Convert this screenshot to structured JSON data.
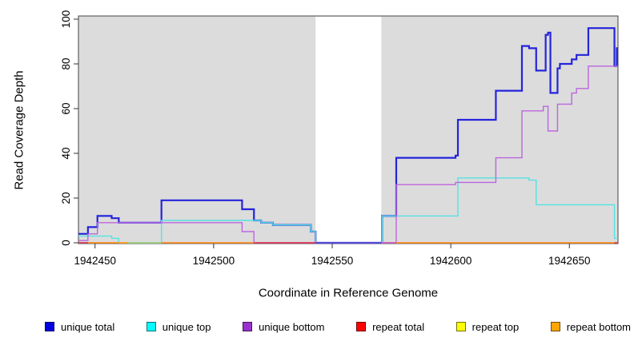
{
  "chart_data": {
    "type": "line",
    "subtype": "step-coverage-plot",
    "title": "",
    "xlabel": "Coordinate in Reference Genome",
    "ylabel": "Read Coverage Depth",
    "x_ticks": [
      1942450,
      1942500,
      1942550,
      1942600,
      1942650
    ],
    "y_ticks": [
      0,
      20,
      40,
      60,
      80,
      100
    ],
    "xlim": [
      1942443,
      1942670.5
    ],
    "ylim": [
      0,
      100
    ],
    "grid": false,
    "legend_position": "bottom",
    "plot_bg_color": "#DCDCDC",
    "frame_color": "#444444",
    "gap_region": {
      "x1": 1942543,
      "x2": 1942570.7,
      "color": "#FFFFFF"
    },
    "series": [
      {
        "label": "unique total",
        "color": "#2424DC",
        "legend_color": "#0000E0",
        "line_width": 2.2,
        "segments": [
          {
            "points": [
              [
                1942443,
                4
              ],
              [
                1942447,
                7
              ],
              [
                1942451,
                12
              ],
              [
                1942457,
                11
              ],
              [
                1942460,
                9
              ],
              [
                1942478,
                19
              ],
              [
                1942512,
                15
              ],
              [
                1942517,
                10
              ],
              [
                1942520,
                9
              ],
              [
                1942525,
                8
              ],
              [
                1942541,
                5
              ],
              [
                1942543,
                0
              ],
              [
                1942571,
                12
              ],
              [
                1942577,
                38
              ],
              [
                1942602,
                39
              ],
              [
                1942603,
                55
              ],
              [
                1942619,
                68
              ],
              [
                1942630,
                88
              ],
              [
                1942633,
                87
              ],
              [
                1942636,
                77
              ],
              [
                1942640,
                93
              ],
              [
                1942641,
                94
              ],
              [
                1942642,
                67
              ],
              [
                1942645,
                78
              ],
              [
                1942646,
                80
              ],
              [
                1942651,
                82
              ],
              [
                1942653,
                84
              ],
              [
                1942658,
                96
              ],
              [
                1942669,
                79
              ],
              [
                1942670,
                87
              ]
            ],
            "end": 1942670.5
          }
        ]
      },
      {
        "label": "unique top",
        "color": "#55E2E2",
        "legend_color": "#00FFFF",
        "line_width": 1.4,
        "segments": [
          {
            "points": [
              [
                1942443,
                3
              ],
              [
                1942457,
                2
              ],
              [
                1942460,
                0
              ],
              [
                1942478,
                10
              ],
              [
                1942517,
                10
              ],
              [
                1942520,
                9
              ],
              [
                1942525,
                8
              ],
              [
                1942541,
                5
              ],
              [
                1942543,
                0
              ],
              [
                1942571,
                12
              ],
              [
                1942603,
                29
              ],
              [
                1942633,
                28
              ],
              [
                1942636,
                17
              ],
              [
                1942669,
                2
              ]
            ],
            "end": 1942670.5
          }
        ]
      },
      {
        "label": "unique bottom",
        "color": "#BB66DD",
        "legend_color": "#9932CC",
        "line_width": 1.4,
        "segments": [
          {
            "points": [
              [
                1942443,
                1
              ],
              [
                1942447,
                4
              ],
              [
                1942451,
                9
              ],
              [
                1942512,
                5
              ],
              [
                1942517,
                0
              ],
              [
                1942577,
                26
              ],
              [
                1942602,
                27
              ],
              [
                1942619,
                38
              ],
              [
                1942630,
                59
              ],
              [
                1942639,
                61
              ],
              [
                1942641,
                50
              ],
              [
                1942645,
                62
              ],
              [
                1942651,
                67
              ],
              [
                1942653,
                69
              ],
              [
                1942658,
                79
              ]
            ],
            "end": 1942670.5
          }
        ]
      },
      {
        "label": "repeat total",
        "color": "#E8304A",
        "legend_color": "#FF0000",
        "line_width": 1.4,
        "segments": [
          {
            "points": [
              [
                1942443,
                0
              ]
            ],
            "end": 1942543
          },
          {
            "points": [
              [
                1942571,
                0
              ]
            ],
            "end": 1942670.5
          }
        ]
      },
      {
        "label": "repeat top",
        "color": "#F2E62E",
        "legend_color": "#FFFF00",
        "line_width": 1.4,
        "segments": [
          {
            "points": [
              [
                1942460,
                0
              ]
            ],
            "end": 1942478
          }
        ]
      },
      {
        "label": "repeat bottom",
        "color": "#FF9D1E",
        "legend_color": "#FFA500",
        "line_width": 1.4,
        "segments": [
          {
            "points": [
              [
                1942447,
                0
              ]
            ],
            "end": 1942517
          },
          {
            "points": [
              [
                1942577,
                0
              ]
            ],
            "end": 1942669
          }
        ]
      }
    ],
    "baseline_blend_segments": [
      {
        "x1": 1942443,
        "x2": 1942447,
        "color": "#D8415F",
        "meaning": "repeat total over unique bottom at 0"
      },
      {
        "x1": 1942464,
        "x2": 1942478,
        "color": "#86DCA2",
        "meaning": "unique top over repeat lines at 0"
      },
      {
        "x1": 1942543,
        "x2": 1942570.7,
        "color": "#4A3BD8",
        "meaning": "unique total + unique bottom at 0 in gap"
      },
      {
        "x1": 1942570.7,
        "x2": 1942577,
        "color": "#C468CF",
        "meaning": "unique bottom at 0"
      }
    ]
  }
}
